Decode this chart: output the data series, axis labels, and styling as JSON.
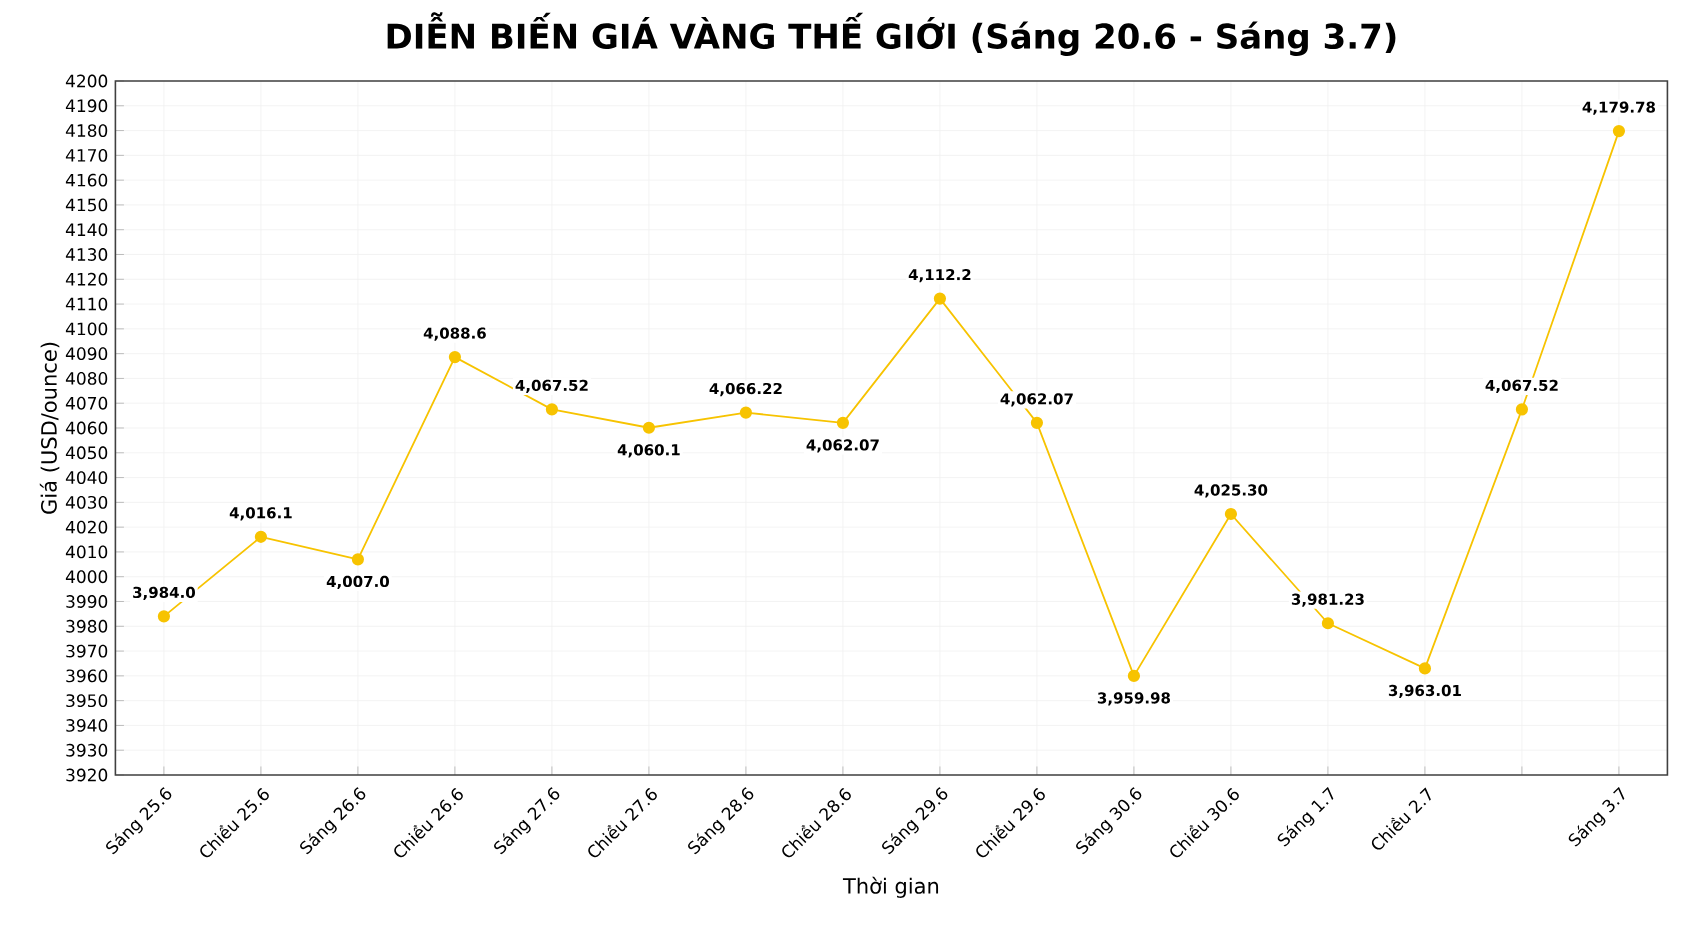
{
  "chart_data": {
    "type": "line",
    "title": "DIỄN BIẾN GIÁ VÀNG THẾ GIỚI (Sáng 20.6 - Sáng 3.7)",
    "xlabel": "Thời gian",
    "ylabel": "Giá (USD/ounce)",
    "categories": [
      "Sáng 25.6",
      "Chiều 25.6",
      "Sáng 26.6",
      "Chiều 26.6",
      "Sáng 27.6",
      "Chiều 27.6",
      "Sáng 28.6",
      "Chiều 28.6",
      "Sáng 29.6",
      "Chiều 29.6",
      "Sáng 30.6",
      "Chiều 30.6",
      "Sáng 1.7",
      "Chiều 2.7",
      null,
      "Sáng 3.7"
    ],
    "series": [
      {
        "color": "#f7c300",
        "values": [
          3984.0,
          4016.1,
          4007.0,
          4088.6,
          4067.52,
          4060.1,
          4066.22,
          4062.07,
          4112.2,
          4062.07,
          3959.98,
          4025.3,
          3981.23,
          3963.01,
          4067.52,
          4179.78
        ],
        "value_labels": [
          "3,984.0",
          "4,016.1",
          "4,007.0",
          "4,088.6",
          "4,067.52",
          "4,060.1",
          "4,066.22",
          "4,062.07",
          "4,112.2",
          "4,062.07",
          "3,959.98",
          "4,025.30",
          "3,981.23",
          "3,963.01",
          "4,067.52",
          "4,179.78"
        ]
      }
    ],
    "ylim": [
      3920,
      4200
    ],
    "yticks": [
      3920,
      3930,
      3940,
      3950,
      3960,
      3970,
      3980,
      3990,
      4000,
      4010,
      4020,
      4030,
      4040,
      4050,
      4060,
      4070,
      4080,
      4090,
      4100,
      4110,
      4120,
      4130,
      4140,
      4150,
      4160,
      4170,
      4180,
      4190,
      4200
    ],
    "grid": true,
    "marker": "circle",
    "line_style": "solid"
  }
}
